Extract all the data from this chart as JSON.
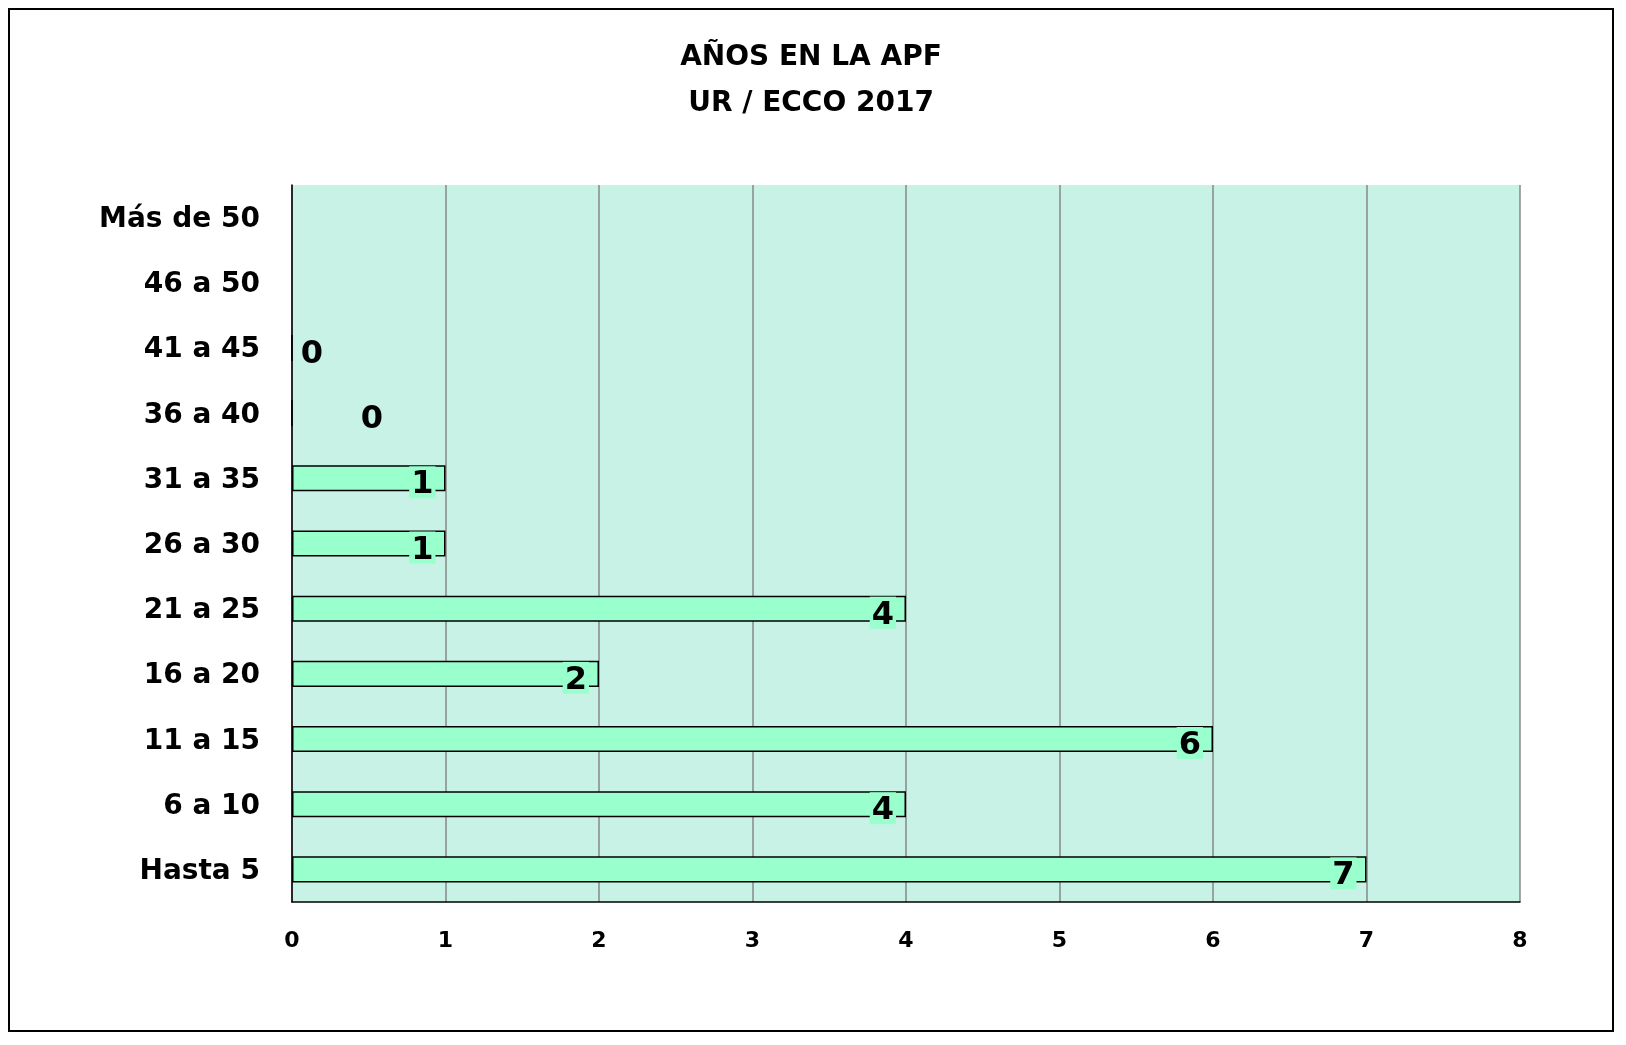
{
  "chart_data": {
    "type": "bar",
    "orientation": "horizontal",
    "title": "AÑOS EN LA APF",
    "subtitle": "UR / ECCO 2017",
    "categories": [
      "Más de 50",
      "46 a 50",
      "41 a 45",
      "36 a 40",
      "31 a 35",
      "26 a 30",
      "21 a 25",
      "16 a 20",
      "11 a 15",
      "6 a 10",
      "Hasta 5"
    ],
    "values": [
      null,
      null,
      0,
      0,
      1,
      1,
      4,
      2,
      6,
      4,
      7
    ],
    "value_labels": [
      null,
      null,
      "0",
      "0",
      "1",
      "1",
      "4",
      "2",
      "6",
      "4",
      "7"
    ],
    "color": "#99ffcc",
    "xlim": [
      0,
      8
    ],
    "xticks": [
      0,
      1,
      2,
      3,
      4,
      5,
      6,
      7,
      8
    ],
    "grid": "x"
  }
}
